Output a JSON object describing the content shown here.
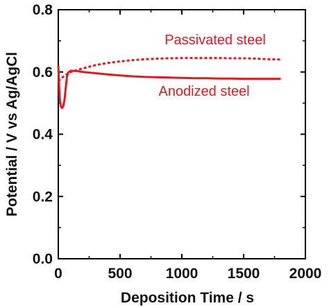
{
  "chart_data": {
    "type": "line",
    "xlabel": "Deposition Time / s",
    "ylabel": "Potential / V vs Ag/AgCl",
    "xlim": [
      0,
      2000
    ],
    "ylim": [
      0.0,
      0.8
    ],
    "xticks": [
      0,
      500,
      1000,
      1500,
      2000
    ],
    "xtick_labels": [
      "0",
      "500",
      "1000",
      "1500",
      "2000"
    ],
    "yticks": [
      0.0,
      0.2,
      0.4,
      0.6,
      0.8
    ],
    "ytick_labels": [
      "0.0",
      "0.2",
      "0.4",
      "0.6",
      "0.8"
    ],
    "grid": false,
    "series_color": "#e8171f",
    "series": [
      {
        "name": "Passivated steel",
        "style": "dotted",
        "x": [
          0,
          20,
          50,
          100,
          200,
          300,
          400,
          500,
          600,
          700,
          800,
          900,
          1000,
          1100,
          1200,
          1300,
          1400,
          1500,
          1600,
          1700,
          1800
        ],
        "y": [
          0.57,
          0.578,
          0.588,
          0.6,
          0.612,
          0.622,
          0.629,
          0.634,
          0.638,
          0.641,
          0.643,
          0.644,
          0.645,
          0.645,
          0.645,
          0.645,
          0.644,
          0.644,
          0.643,
          0.641,
          0.64
        ]
      },
      {
        "name": "Anodized steel",
        "style": "solid",
        "x": [
          0,
          5,
          10,
          20,
          30,
          40,
          50,
          60,
          70,
          80,
          100,
          150,
          200,
          300,
          400,
          500,
          600,
          700,
          800,
          900,
          1000,
          1100,
          1200,
          1300,
          1400,
          1500,
          1600,
          1700,
          1800
        ],
        "y": [
          0.62,
          0.57,
          0.52,
          0.49,
          0.484,
          0.49,
          0.51,
          0.55,
          0.585,
          0.598,
          0.604,
          0.603,
          0.6,
          0.596,
          0.592,
          0.589,
          0.586,
          0.584,
          0.583,
          0.582,
          0.581,
          0.58,
          0.58,
          0.579,
          0.579,
          0.578,
          0.578,
          0.578,
          0.578
        ]
      }
    ]
  }
}
